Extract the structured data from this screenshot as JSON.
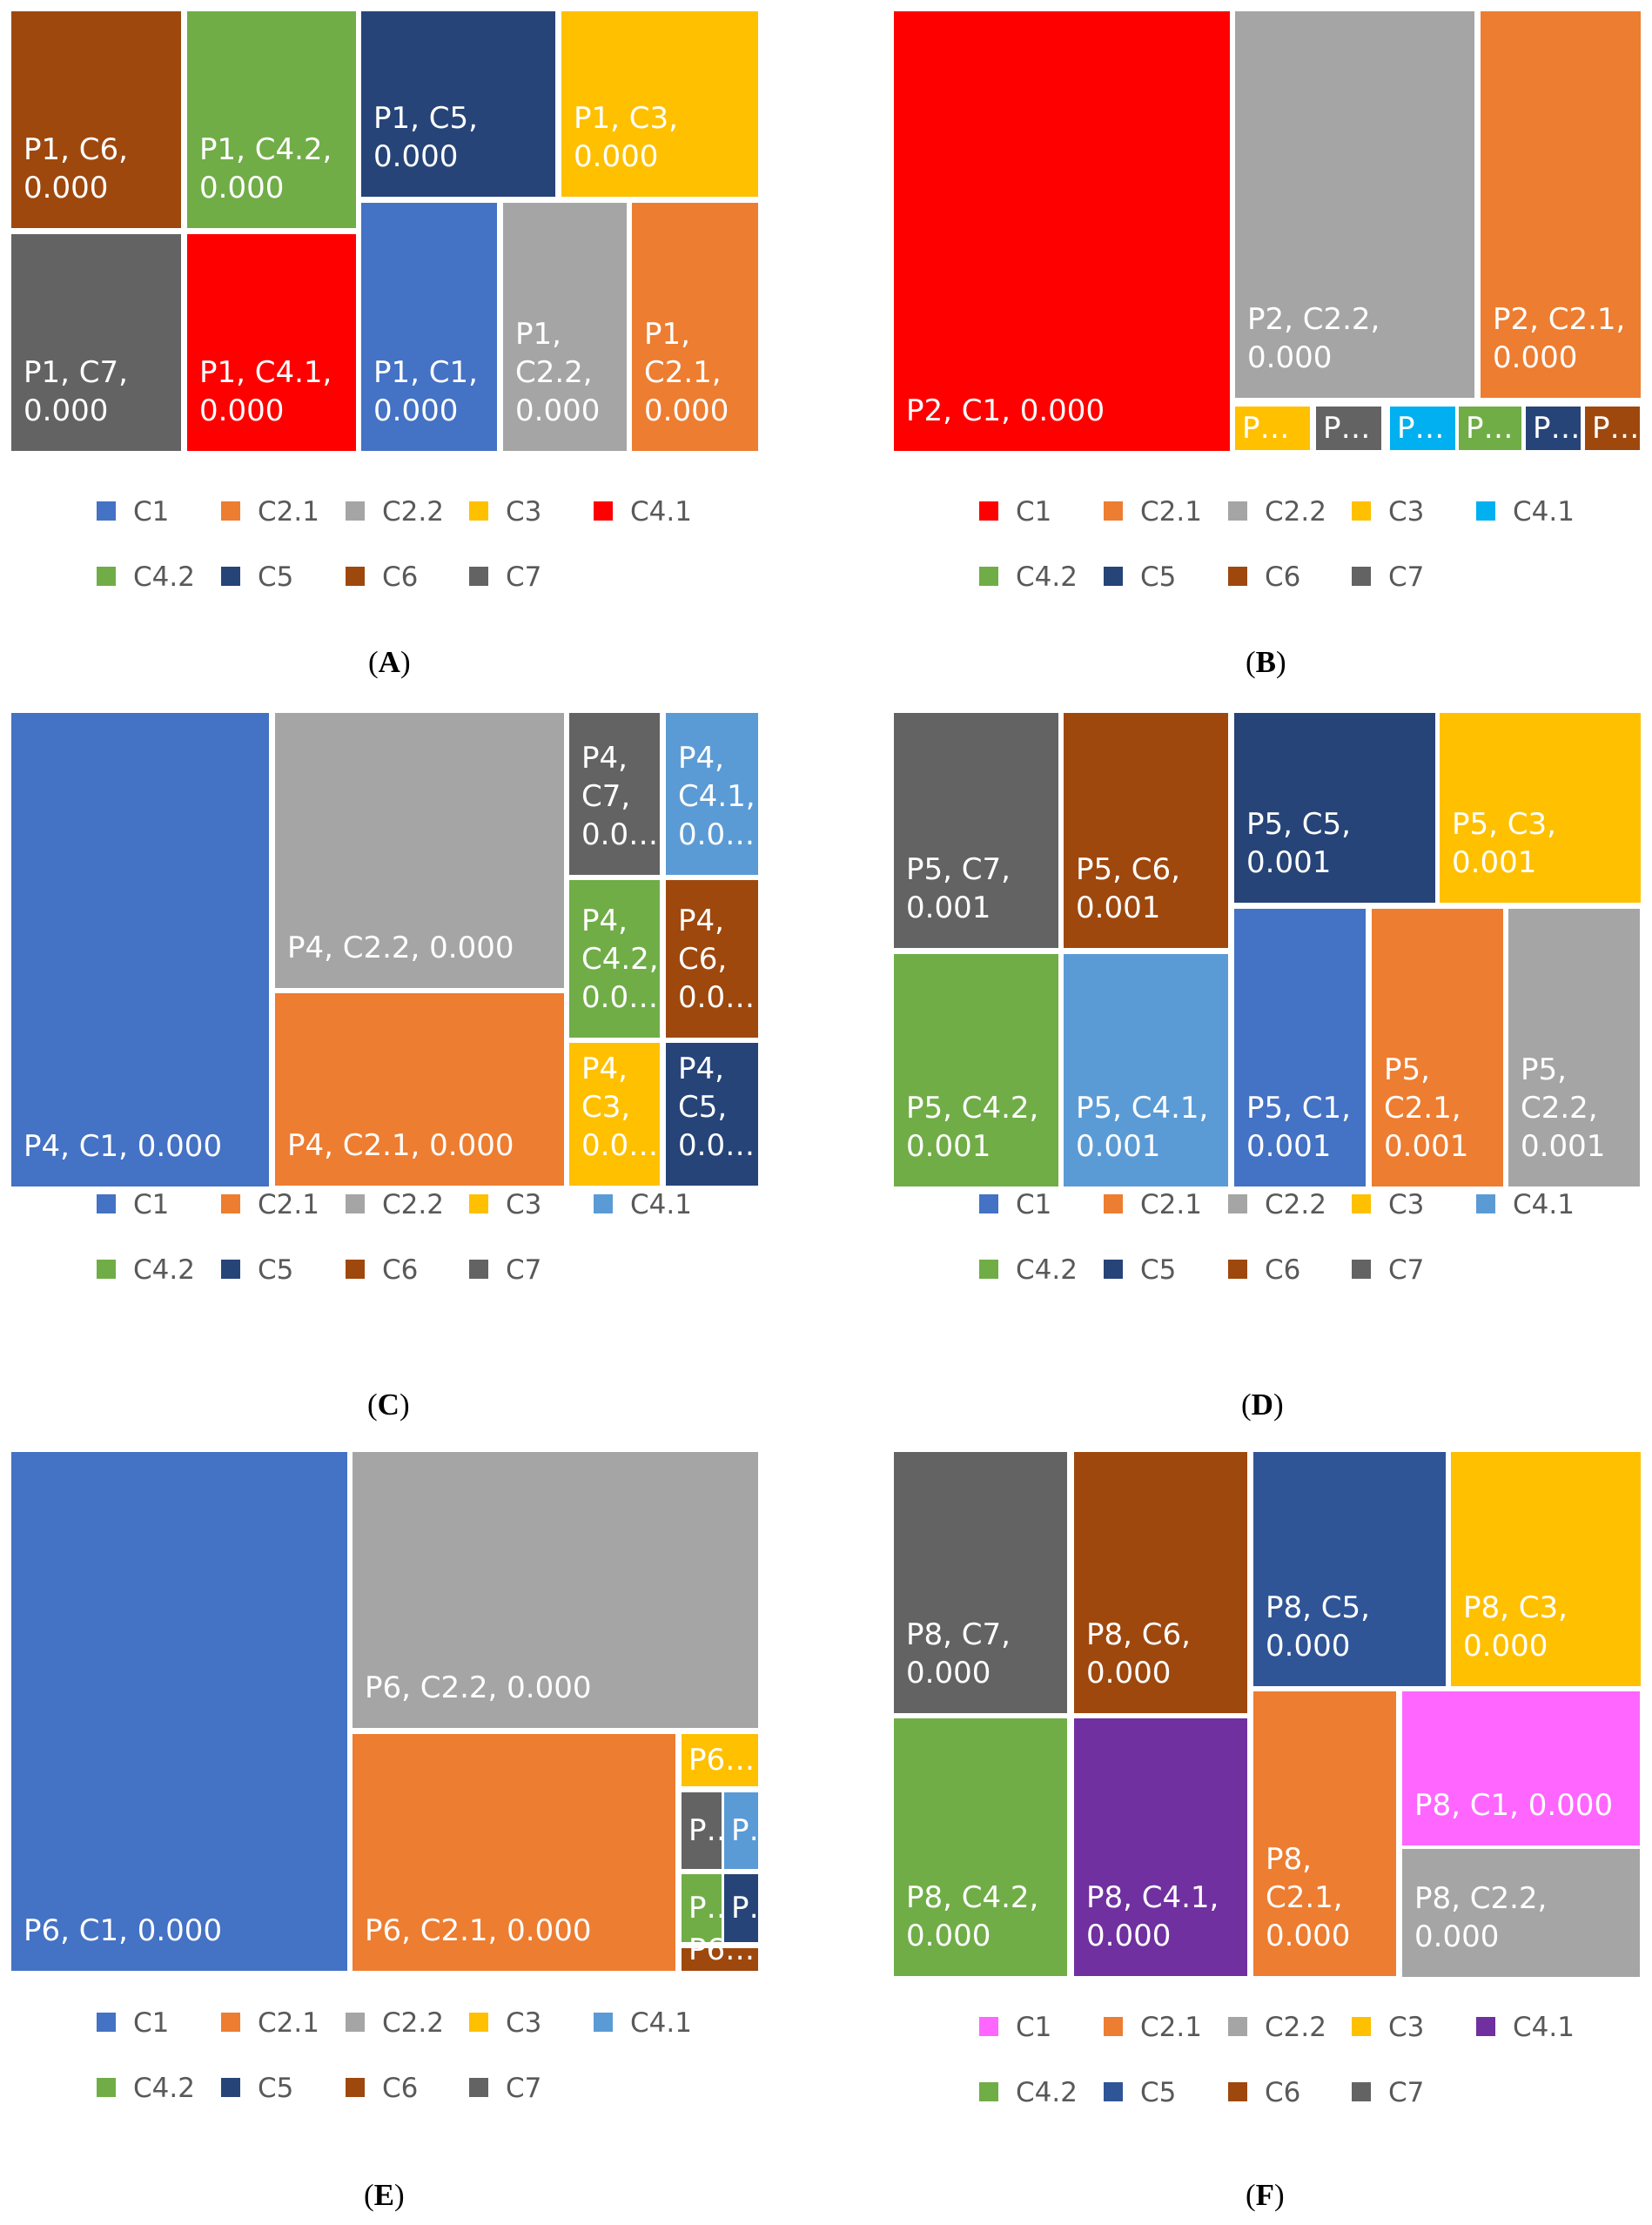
{
  "chart_data": [
    {
      "type": "treemap",
      "caption": "A",
      "legend": [
        "C1",
        "C2.1",
        "C2.2",
        "C3",
        "C4.1",
        "C4.2",
        "C5",
        "C6",
        "C7"
      ],
      "colors": {
        "C1": "#4472c4",
        "C2.1": "#ed7d31",
        "C2.2": "#a5a5a5",
        "C3": "#ffc000",
        "C4.1": "#ff0000",
        "C4.2": "#70ad47",
        "C5": "#264478",
        "C6": "#9e480e",
        "C7": "#636363"
      },
      "tiles": [
        {
          "category": "C6",
          "label": "P1, C6,\n0.000"
        },
        {
          "category": "C4.2",
          "label": "P1, C4.2,\n0.000"
        },
        {
          "category": "C5",
          "label": "P1, C5, 0.000"
        },
        {
          "category": "C3",
          "label": "P1, C3, 0.000"
        },
        {
          "category": "C7",
          "label": "P1, C7,\n0.000"
        },
        {
          "category": "C4.1",
          "label": "P1, C4.1,\n0.000"
        },
        {
          "category": "C1",
          "label": "P1, C1,\n0.000"
        },
        {
          "category": "C2.2",
          "label": "P1,\nC2.2,\n0.000"
        },
        {
          "category": "C2.1",
          "label": "P1,\nC2.1,\n0.000"
        }
      ]
    },
    {
      "type": "treemap",
      "caption": "B",
      "legend": [
        "C1",
        "C2.1",
        "C2.2",
        "C3",
        "C4.1",
        "C4.2",
        "C5",
        "C6",
        "C7"
      ],
      "colors": {
        "C1": "#ff0000",
        "C2.1": "#ed7d31",
        "C2.2": "#a5a5a5",
        "C3": "#ffc000",
        "C4.1": "#00b0f0",
        "C4.2": "#70ad47",
        "C5": "#264478",
        "C6": "#9e480e",
        "C7": "#636363"
      },
      "tiles": [
        {
          "category": "C1",
          "label": "P2, C1, 0.000"
        },
        {
          "category": "C2.2",
          "label": "P2, C2.2, 0.000"
        },
        {
          "category": "C2.1",
          "label": "P2, C2.1,\n0.000"
        },
        {
          "category": "C3",
          "label": "P…"
        },
        {
          "category": "C7",
          "label": "P…"
        },
        {
          "category": "C4.1",
          "label": "P…"
        },
        {
          "category": "C4.2",
          "label": "P…"
        },
        {
          "category": "C5",
          "label": "P…"
        },
        {
          "category": "C6",
          "label": "P…"
        }
      ]
    },
    {
      "type": "treemap",
      "caption": "C",
      "legend": [
        "C1",
        "C2.1",
        "C2.2",
        "C3",
        "C4.1",
        "C4.2",
        "C5",
        "C6",
        "C7"
      ],
      "colors": {
        "C1": "#4472c4",
        "C2.1": "#ed7d31",
        "C2.2": "#a5a5a5",
        "C3": "#ffc000",
        "C4.1": "#5b9bd5",
        "C4.2": "#70ad47",
        "C5": "#264478",
        "C6": "#9e480e",
        "C7": "#636363"
      },
      "tiles": [
        {
          "category": "C1",
          "label": "P4, C1, 0.000"
        },
        {
          "category": "C2.2",
          "label": "P4, C2.2, 0.000"
        },
        {
          "category": "C2.1",
          "label": "P4, C2.1, 0.000"
        },
        {
          "category": "C7",
          "label": "P4,\nC7,\n0.0…"
        },
        {
          "category": "C4.1",
          "label": "P4,\nC4.1,\n0.0…"
        },
        {
          "category": "C4.2",
          "label": "P4,\nC4.2,\n0.0…"
        },
        {
          "category": "C6",
          "label": "P4,\nC6,\n0.0…"
        },
        {
          "category": "C3",
          "label": "P4,\nC3,\n0.0…"
        },
        {
          "category": "C5",
          "label": "P4,\nC5,\n0.0…"
        }
      ]
    },
    {
      "type": "treemap",
      "caption": "D",
      "legend": [
        "C1",
        "C2.1",
        "C2.2",
        "C3",
        "C4.1",
        "C4.2",
        "C5",
        "C6",
        "C7"
      ],
      "colors": {
        "C1": "#4472c4",
        "C2.1": "#ed7d31",
        "C2.2": "#a5a5a5",
        "C3": "#ffc000",
        "C4.1": "#5b9bd5",
        "C4.2": "#70ad47",
        "C5": "#264478",
        "C6": "#9e480e",
        "C7": "#636363"
      },
      "tiles": [
        {
          "category": "C7",
          "label": "P5, C7,\n0.001"
        },
        {
          "category": "C6",
          "label": "P5, C6,\n0.001"
        },
        {
          "category": "C5",
          "label": "P5, C5, 0.001"
        },
        {
          "category": "C3",
          "label": "P5, C3, 0.001"
        },
        {
          "category": "C4.2",
          "label": "P5, C4.2,\n0.001"
        },
        {
          "category": "C4.1",
          "label": "P5, C4.1,\n0.001"
        },
        {
          "category": "C1",
          "label": "P5, C1,\n0.001"
        },
        {
          "category": "C2.1",
          "label": "P5,\nC2.1,\n0.001"
        },
        {
          "category": "C2.2",
          "label": "P5,\nC2.2,\n0.001"
        }
      ]
    },
    {
      "type": "treemap",
      "caption": "E",
      "legend": [
        "C1",
        "C2.1",
        "C2.2",
        "C3",
        "C4.1",
        "C4.2",
        "C5",
        "C6",
        "C7"
      ],
      "colors": {
        "C1": "#4472c4",
        "C2.1": "#ed7d31",
        "C2.2": "#a5a5a5",
        "C3": "#ffc000",
        "C4.1": "#5b9bd5",
        "C4.2": "#70ad47",
        "C5": "#264478",
        "C6": "#9e480e",
        "C7": "#636363"
      },
      "tiles": [
        {
          "category": "C1",
          "label": "P6, C1, 0.000"
        },
        {
          "category": "C2.2",
          "label": "P6, C2.2, 0.000"
        },
        {
          "category": "C2.1",
          "label": "P6, C2.1, 0.000"
        },
        {
          "category": "C3",
          "label": "P6…"
        },
        {
          "category": "C7",
          "label": "P…"
        },
        {
          "category": "C4.1",
          "label": "P…"
        },
        {
          "category": "C4.2",
          "label": "P…"
        },
        {
          "category": "C5",
          "label": "P…"
        },
        {
          "category": "C6",
          "label": "P6…"
        }
      ]
    },
    {
      "type": "treemap",
      "caption": "F",
      "legend": [
        "C1",
        "C2.1",
        "C2.2",
        "C3",
        "C4.1",
        "C4.2",
        "C5",
        "C6",
        "C7"
      ],
      "colors": {
        "C1": "#ff66ff",
        "C2.1": "#ed7d31",
        "C2.2": "#a5a5a5",
        "C3": "#ffc000",
        "C4.1": "#7030a0",
        "C4.2": "#70ad47",
        "C5": "#2f5597",
        "C6": "#9e480e",
        "C7": "#636363"
      },
      "tiles": [
        {
          "category": "C7",
          "label": "P8, C7,\n0.000"
        },
        {
          "category": "C6",
          "label": "P8, C6,\n0.000"
        },
        {
          "category": "C5",
          "label": "P8, C5, 0.000"
        },
        {
          "category": "C3",
          "label": "P8, C3,\n0.000"
        },
        {
          "category": "C4.2",
          "label": "P8, C4.2,\n0.000"
        },
        {
          "category": "C4.1",
          "label": "P8, C4.1,\n0.000"
        },
        {
          "category": "C2.1",
          "label": "P8, C2.1,\n0.000"
        },
        {
          "category": "C1",
          "label": "P8, C1, 0.000"
        },
        {
          "category": "C2.2",
          "label": "P8, C2.2, 0.000"
        }
      ]
    }
  ]
}
